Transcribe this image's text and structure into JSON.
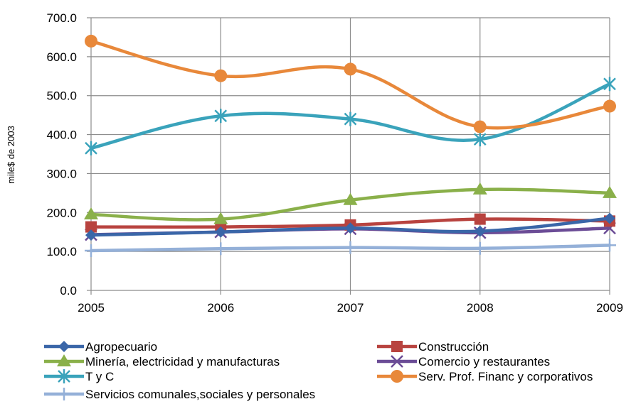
{
  "chart_data": {
    "type": "line",
    "x": [
      "2005",
      "2006",
      "2007",
      "2008",
      "2009"
    ],
    "ylabel": "mile$ de 2003",
    "xlabel": "",
    "ylim": [
      0,
      700
    ],
    "yticks": [
      "0.0",
      "100.0",
      "200.0",
      "300.0",
      "400.0",
      "500.0",
      "600.0",
      "700.0"
    ],
    "grid": true,
    "legend_position": "bottom",
    "series": [
      {
        "name": "Agropecuario",
        "values": [
          142,
          150,
          160,
          152,
          185
        ],
        "color": "#3A66A8",
        "marker": "diamond"
      },
      {
        "name": "Construcción",
        "values": [
          163,
          163,
          168,
          183,
          178
        ],
        "color": "#B8433F",
        "marker": "square"
      },
      {
        "name": "Minería, electricidad y manufacturas",
        "values": [
          195,
          183,
          232,
          259,
          250
        ],
        "color": "#8AB04A",
        "marker": "triangle"
      },
      {
        "name": "Comercio y restaurantes",
        "values": [
          143,
          150,
          158,
          148,
          160
        ],
        "color": "#6B4C96",
        "marker": "x"
      },
      {
        "name": "T y C",
        "values": [
          365,
          448,
          440,
          388,
          530
        ],
        "color": "#3AA3BB",
        "marker": "star"
      },
      {
        "name": "Serv. Prof. Financ y corporativos",
        "values": [
          640,
          551,
          568,
          420,
          473
        ],
        "color": "#E8883A",
        "marker": "circle"
      },
      {
        "name": "Servicios comunales,sociales y personales",
        "values": [
          102,
          107,
          110,
          108,
          116
        ],
        "color": "#94B0D8",
        "marker": "plus"
      }
    ]
  }
}
